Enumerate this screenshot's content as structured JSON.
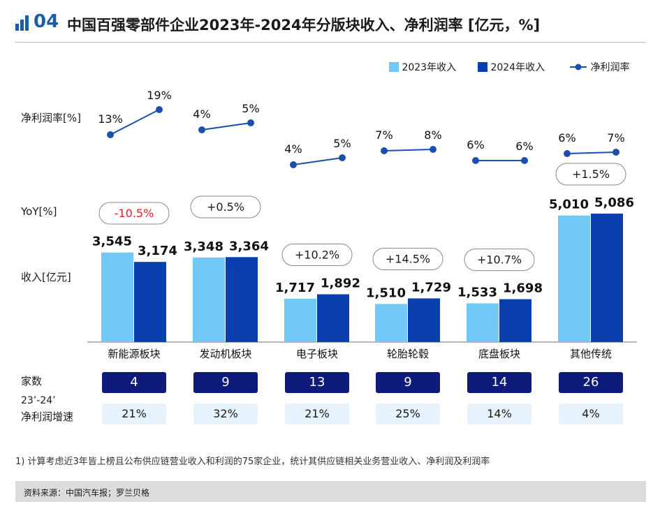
{
  "header": {
    "number": "04",
    "title": "中国百强零部件企业2023年-2024年分版块收入、净利润率 [亿元，%]"
  },
  "legend": {
    "rev2023": "2023年收入",
    "rev2024": "2024年收入",
    "margin": "净利润率"
  },
  "row_labels": {
    "margin": "净利润率[%]",
    "yoy": "YoY[%]",
    "revenue": "收入[亿元]",
    "count": "家数",
    "growth_line1": "23’-24’",
    "growth_line2": "净利润增速"
  },
  "colors": {
    "rev2023": "#72c8f6",
    "rev2024": "#0a3fb0",
    "margin_line": "#1a4fb0",
    "yoy_negative": "#e02020",
    "count_box": "#0f1b7a",
    "growth_box": "#e6f3fc",
    "title_accent": "#1b5ea8"
  },
  "chart_data": {
    "type": "bar",
    "title": "中国百强零部件企业2023年-2024年分版块收入、净利润率 [亿元，%]",
    "ylabel": "收入[亿元]",
    "ylim": [
      0,
      6000
    ],
    "categories": [
      "新能源板块",
      "发动机板块",
      "电子板块",
      "轮胎轮毂",
      "底盘板块",
      "其他传统"
    ],
    "series": [
      {
        "name": "2023年收入",
        "values": [
          3545,
          3348,
          1717,
          1510,
          1533,
          5010
        ],
        "labels": [
          "3,545",
          "3,348",
          "1,717",
          "1,510",
          "1,533",
          "5,010"
        ]
      },
      {
        "name": "2024年收入",
        "values": [
          3174,
          3364,
          1892,
          1729,
          1698,
          5086
        ],
        "labels": [
          "3,174",
          "3,364",
          "1,892",
          "1,729",
          "1,698",
          "5,086"
        ]
      }
    ],
    "margin": {
      "name": "净利润率",
      "values_2023": [
        13,
        4,
        4,
        7,
        6,
        6
      ],
      "values_2024": [
        19,
        5,
        5,
        8,
        6,
        7
      ],
      "labels_2023": [
        "13%",
        "4%",
        "4%",
        "7%",
        "6%",
        "6%"
      ],
      "labels_2024": [
        "19%",
        "5%",
        "5%",
        "8%",
        "6%",
        "7%"
      ]
    },
    "yoy": [
      "-10.5%",
      "+0.5%",
      "+10.2%",
      "+14.5%",
      "+10.7%",
      "+1.5%"
    ],
    "company_counts": [
      "4",
      "9",
      "13",
      "9",
      "14",
      "26"
    ],
    "profit_growth": [
      "21%",
      "32%",
      "21%",
      "25%",
      "14%",
      "4%"
    ]
  },
  "footnote": "1) 计算考虑近3年皆上榜且公布供应链营业收入和利润的75家企业，统计其供应链相关业务营业收入、净利润及利润率",
  "source": "资料来源：中国汽车报；罗兰贝格"
}
